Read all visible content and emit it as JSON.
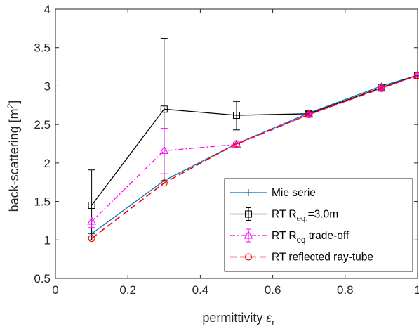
{
  "chart_data": {
    "type": "line",
    "xlabel": "permittivity",
    "xlabel_symbol": "ε",
    "xlabel_subscript": "r",
    "ylabel": "back-scattering [m",
    "ylabel_sup": "2",
    "ylabel_close": "]",
    "xlim": [
      0,
      1
    ],
    "ylim": [
      0.5,
      4
    ],
    "xticks": [
      0,
      0.2,
      0.4,
      0.6,
      0.8,
      1
    ],
    "xtick_labels": [
      "0",
      "0.2",
      "0.4",
      "0.6",
      "0.8",
      "1"
    ],
    "yticks": [
      0.5,
      1,
      1.5,
      2,
      2.5,
      3,
      3.5,
      4
    ],
    "ytick_labels": [
      "0.5",
      "1",
      "1.5",
      "2",
      "2.5",
      "3",
      "3.5",
      "4"
    ],
    "grid": false,
    "legend_position": "bottom-right",
    "series": [
      {
        "name": "Mie serie",
        "legend": {
          "main": "Mie serie",
          "sub": "",
          "tail": ""
        },
        "color": "#0072BD",
        "line_style": "solid",
        "marker": "plus",
        "x": [
          0.1,
          0.3,
          0.5,
          0.7,
          0.9,
          1.0
        ],
        "y": [
          1.08,
          1.77,
          2.25,
          2.65,
          3.0,
          3.14
        ]
      },
      {
        "name": "RT R_eq.=3.0m",
        "legend": {
          "main": "RT R",
          "sub": "eq.",
          "tail": "=3.0m"
        },
        "color": "#000000",
        "line_style": "solid",
        "marker": "square",
        "x": [
          0.1,
          0.3,
          0.5,
          0.7,
          0.9,
          1.0
        ],
        "y": [
          1.45,
          2.7,
          2.62,
          2.64,
          2.98,
          3.14
        ],
        "error_upper": [
          1.91,
          3.62,
          2.8,
          2.67,
          3.0,
          3.15
        ],
        "error_lower": [
          1.0,
          1.77,
          2.43,
          2.62,
          2.96,
          3.13
        ]
      },
      {
        "name": "RT R_eq trade-off",
        "legend": {
          "main": "RT R",
          "sub": "eq",
          "tail": " trade-off"
        },
        "color": "#FF00FF",
        "line_style": "dashdot",
        "marker": "triangle",
        "x": [
          0.1,
          0.3,
          0.5,
          0.7,
          0.9,
          1.0
        ],
        "y": [
          1.24,
          2.16,
          2.24,
          2.63,
          2.97,
          3.14
        ],
        "error_upper": [
          1.3,
          2.45,
          2.26,
          2.65,
          2.99,
          3.15
        ],
        "error_lower": [
          1.16,
          1.86,
          2.22,
          2.61,
          2.95,
          3.13
        ]
      },
      {
        "name": "RT reflected ray-tube",
        "legend": {
          "main": "RT reflected ray-tube",
          "sub": "",
          "tail": ""
        },
        "color": "#FF0000",
        "line_style": "dashed",
        "marker": "circle",
        "x": [
          0.1,
          0.3,
          0.5,
          0.7,
          0.9,
          1.0
        ],
        "y": [
          1.02,
          1.74,
          2.25,
          2.63,
          2.97,
          3.14
        ]
      }
    ]
  }
}
